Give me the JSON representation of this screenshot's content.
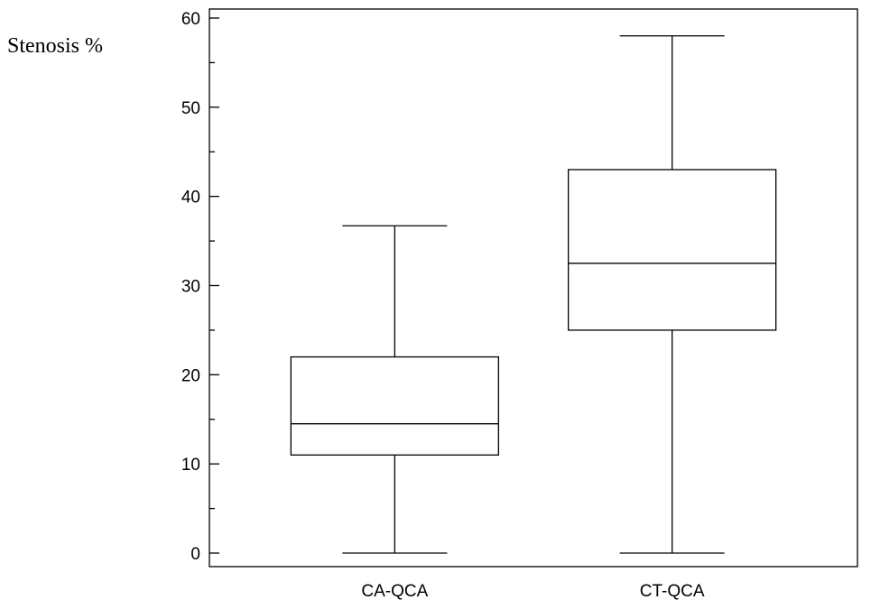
{
  "chart_data": {
    "type": "boxplot",
    "ylabel": "Stenosis %",
    "xlabel": "",
    "ylim": [
      0,
      60
    ],
    "yticks": [
      0,
      10,
      20,
      30,
      40,
      50,
      60
    ],
    "categories": [
      "CA-QCA",
      "CT-QCA"
    ],
    "boxes": [
      {
        "category": "CA-QCA",
        "min": 0,
        "q1": 11,
        "median": 14.5,
        "q3": 22,
        "max": 36.7
      },
      {
        "category": "CT-QCA",
        "min": 0,
        "q1": 25,
        "median": 32.5,
        "q3": 43,
        "max": 58
      }
    ],
    "grid": false
  }
}
